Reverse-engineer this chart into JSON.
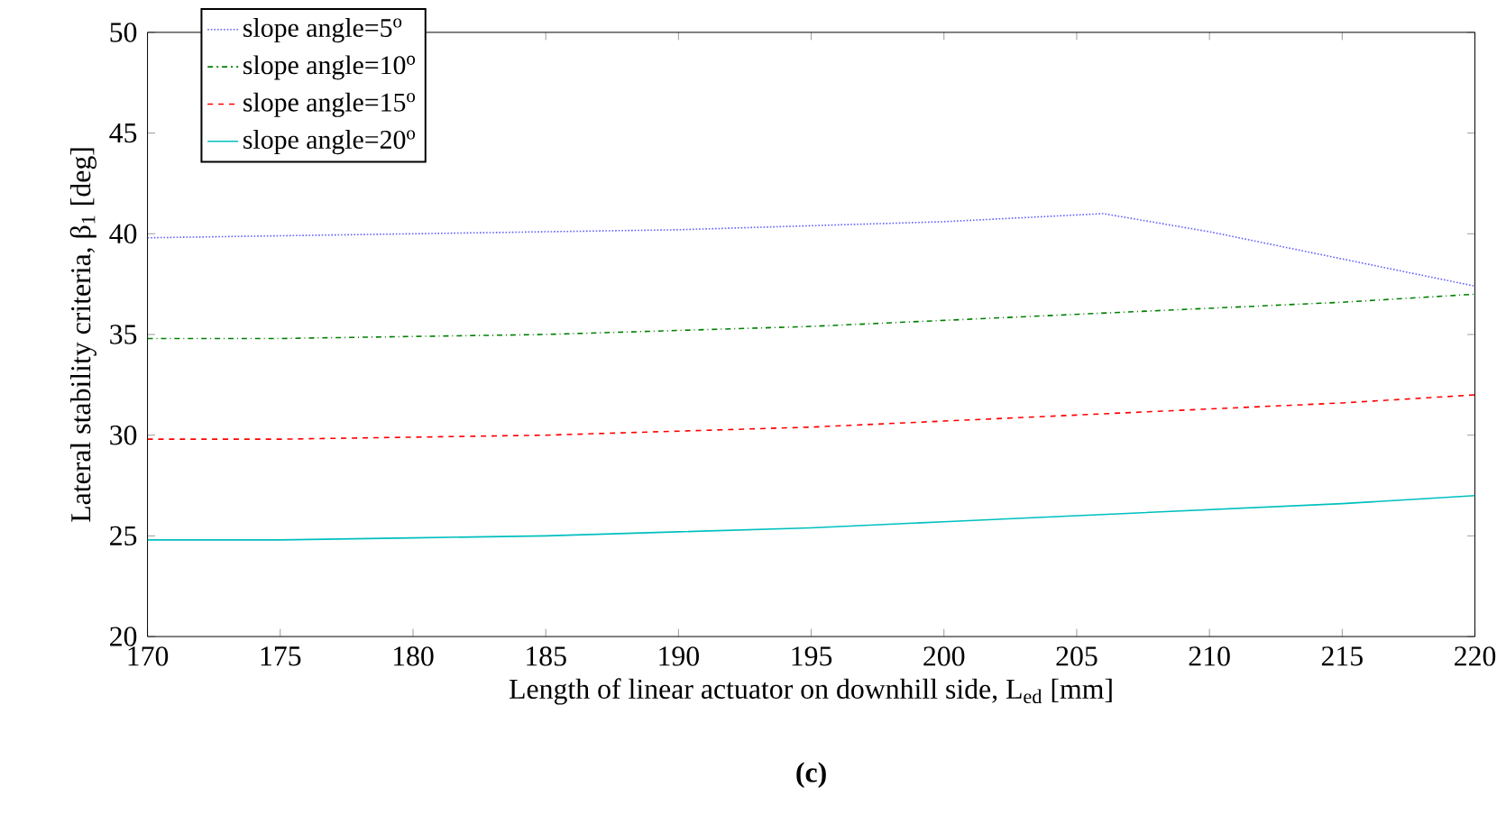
{
  "chart_data": {
    "type": "line",
    "xlabel": "Length of linear actuator on downhill side, L$_{ed}$ [mm]",
    "ylabel": "Lateral stability criteria, β$_{1}$ [deg]",
    "x": [
      170,
      175,
      180,
      185,
      190,
      195,
      200,
      205,
      210,
      215,
      220
    ],
    "xlim": [
      170,
      220
    ],
    "xticks": [
      170,
      175,
      180,
      185,
      190,
      195,
      200,
      205,
      210,
      215,
      220
    ],
    "ylim": [
      20,
      50
    ],
    "yticks": [
      20,
      25,
      30,
      35,
      40,
      45,
      50
    ],
    "grid": false,
    "legend": "top left",
    "marker": "none",
    "series": [
      {
        "name": "slope angle=5$^{o}$",
        "color": "#6060ff",
        "line_style": "dotted",
        "x": [
          170,
          180,
          190,
          200,
          206,
          210,
          220
        ],
        "values": [
          39.8,
          40.0,
          40.2,
          40.6,
          41.0,
          40.1,
          37.4
        ]
      },
      {
        "name": "slope angle=10$^{o}$",
        "color": "#008000",
        "line_style": "dashdot",
        "values": [
          34.8,
          34.8,
          34.9,
          35.0,
          35.2,
          35.4,
          35.7,
          36.0,
          36.3,
          36.6,
          37.0
        ]
      },
      {
        "name": "slope angle=15$^{o}$",
        "color": "#ff0000",
        "line_style": "dashed",
        "values": [
          29.8,
          29.8,
          29.9,
          30.0,
          30.2,
          30.4,
          30.7,
          31.0,
          31.3,
          31.6,
          32.0
        ]
      },
      {
        "name": "slope angle=20$^{o}$",
        "color": "#00bfbf",
        "line_style": "solid",
        "values": [
          24.8,
          24.8,
          24.9,
          25.0,
          25.2,
          25.4,
          25.7,
          26.0,
          26.3,
          26.6,
          27.0
        ]
      }
    ],
    "annotations": [
      "(c)"
    ]
  }
}
